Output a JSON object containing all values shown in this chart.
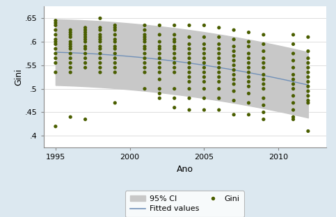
{
  "title": "",
  "xlabel": "Ano",
  "ylabel": "Gini",
  "xlim": [
    1994.2,
    2013.2
  ],
  "ylim": [
    0.375,
    0.675
  ],
  "yticks": [
    0.4,
    0.45,
    0.5,
    0.55,
    0.6,
    0.65
  ],
  "ytick_labels": [
    ".4",
    ".45",
    ".5",
    ".55",
    ".6",
    ".65"
  ],
  "xticks": [
    1995,
    2000,
    2005,
    2010
  ],
  "background_color": "#dce8f0",
  "plot_bg_color": "#ffffff",
  "ci_color": "#c8c8c8",
  "line_color": "#7090b8",
  "dot_color": "#4a5e00",
  "dot_size": 14,
  "scatter_data": {
    "1995": [
      0.42,
      0.535,
      0.555,
      0.565,
      0.575,
      0.585,
      0.595,
      0.6,
      0.605,
      0.615,
      0.625,
      0.635,
      0.64,
      0.645
    ],
    "1996": [
      0.44,
      0.535,
      0.545,
      0.555,
      0.565,
      0.575,
      0.585,
      0.59,
      0.595,
      0.6,
      0.61,
      0.615,
      0.62,
      0.625
    ],
    "1997": [
      0.435,
      0.545,
      0.555,
      0.565,
      0.575,
      0.585,
      0.59,
      0.6,
      0.605,
      0.61,
      0.615,
      0.62,
      0.625,
      0.63
    ],
    "1998": [
      0.535,
      0.545,
      0.555,
      0.565,
      0.575,
      0.585,
      0.59,
      0.6,
      0.605,
      0.61,
      0.615,
      0.625,
      0.63,
      0.65
    ],
    "1999": [
      0.47,
      0.535,
      0.545,
      0.555,
      0.565,
      0.575,
      0.585,
      0.59,
      0.6,
      0.605,
      0.615,
      0.625,
      0.63,
      0.635
    ],
    "2001": [
      0.5,
      0.535,
      0.545,
      0.555,
      0.565,
      0.575,
      0.585,
      0.59,
      0.6,
      0.605,
      0.61,
      0.615,
      0.625,
      0.635
    ],
    "2002": [
      0.48,
      0.49,
      0.5,
      0.52,
      0.535,
      0.545,
      0.555,
      0.565,
      0.575,
      0.585,
      0.59,
      0.6,
      0.615,
      0.635
    ],
    "2003": [
      0.46,
      0.48,
      0.5,
      0.535,
      0.545,
      0.555,
      0.565,
      0.575,
      0.585,
      0.59,
      0.6,
      0.605,
      0.615,
      0.635
    ],
    "2004": [
      0.455,
      0.48,
      0.5,
      0.515,
      0.525,
      0.535,
      0.545,
      0.555,
      0.565,
      0.575,
      0.585,
      0.595,
      0.61,
      0.635
    ],
    "2005": [
      0.455,
      0.48,
      0.5,
      0.515,
      0.525,
      0.535,
      0.545,
      0.555,
      0.565,
      0.575,
      0.585,
      0.595,
      0.61,
      0.635
    ],
    "2006": [
      0.455,
      0.48,
      0.5,
      0.515,
      0.525,
      0.535,
      0.545,
      0.555,
      0.565,
      0.575,
      0.585,
      0.595,
      0.61,
      0.63
    ],
    "2007": [
      0.445,
      0.475,
      0.495,
      0.51,
      0.52,
      0.53,
      0.54,
      0.55,
      0.56,
      0.57,
      0.58,
      0.59,
      0.605,
      0.625
    ],
    "2008": [
      0.445,
      0.47,
      0.49,
      0.505,
      0.515,
      0.525,
      0.535,
      0.545,
      0.555,
      0.565,
      0.575,
      0.59,
      0.6,
      0.62
    ],
    "2009": [
      0.435,
      0.45,
      0.465,
      0.48,
      0.5,
      0.51,
      0.52,
      0.53,
      0.545,
      0.555,
      0.565,
      0.58,
      0.595,
      0.615
    ],
    "2011": [
      0.435,
      0.44,
      0.455,
      0.47,
      0.485,
      0.5,
      0.51,
      0.52,
      0.53,
      0.545,
      0.56,
      0.575,
      0.595,
      0.615
    ],
    "2012": [
      0.41,
      0.47,
      0.475,
      0.485,
      0.495,
      0.505,
      0.515,
      0.525,
      0.535,
      0.545,
      0.555,
      0.565,
      0.58,
      0.61
    ]
  },
  "fitted_points": [
    [
      1995,
      0.578
    ],
    [
      1998,
      0.573
    ],
    [
      2001,
      0.566
    ],
    [
      2004,
      0.555
    ],
    [
      2007,
      0.54
    ],
    [
      2010,
      0.522
    ],
    [
      2012,
      0.508
    ]
  ],
  "ci_upper_points": [
    [
      1995,
      0.648
    ],
    [
      1998,
      0.643
    ],
    [
      2001,
      0.637
    ],
    [
      2004,
      0.625
    ],
    [
      2007,
      0.61
    ],
    [
      2010,
      0.592
    ],
    [
      2012,
      0.578
    ]
  ],
  "ci_lower_points": [
    [
      1995,
      0.508
    ],
    [
      1998,
      0.503
    ],
    [
      2001,
      0.496
    ],
    [
      2004,
      0.484
    ],
    [
      2007,
      0.47
    ],
    [
      2010,
      0.453
    ],
    [
      2012,
      0.438
    ]
  ]
}
